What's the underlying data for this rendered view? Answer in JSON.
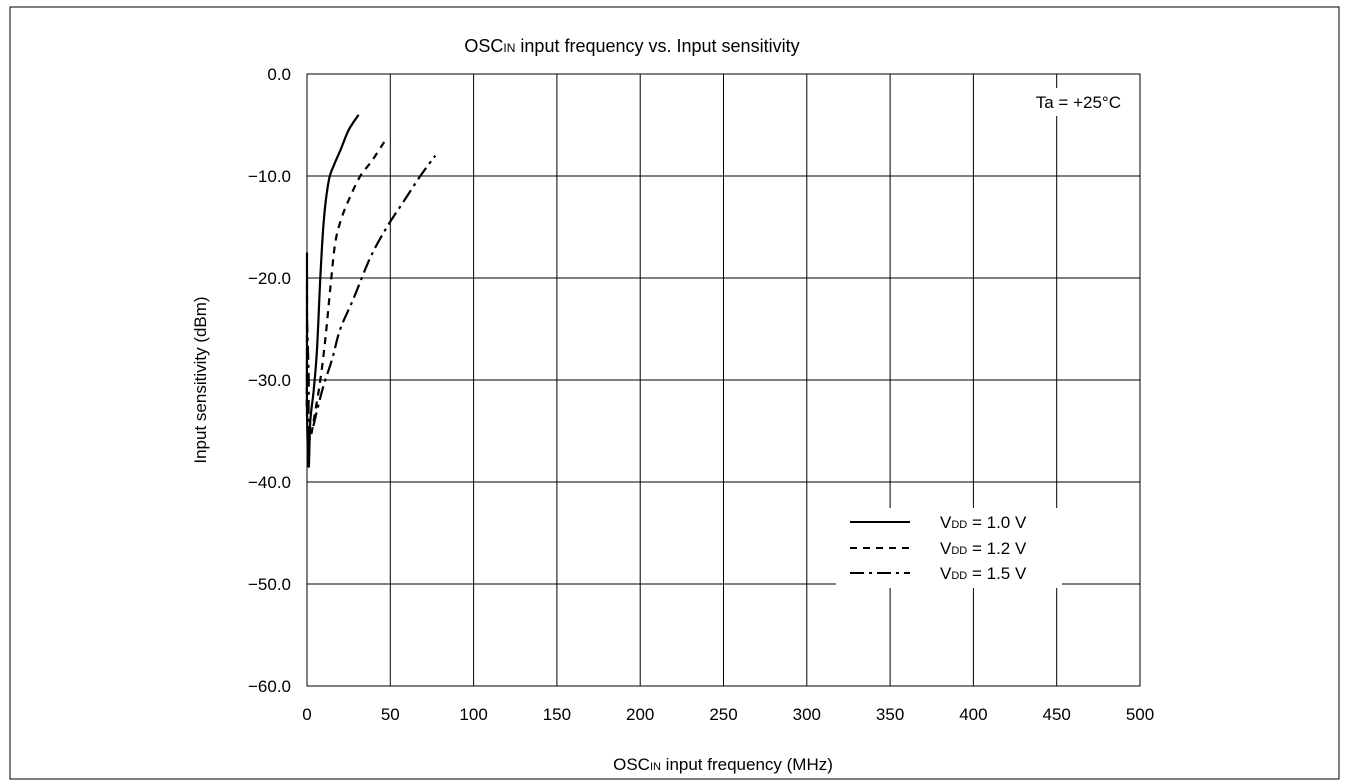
{
  "chart_data": {
    "type": "line",
    "title": {
      "main": "OSC",
      "sub": "IN",
      "rest": " input frequency vs. Input sensitivity"
    },
    "xlabel": {
      "main": "OSC",
      "sub": "IN",
      "rest": " input frequency (MHz)"
    },
    "ylabel": "Input sensitivity (dBm)",
    "annotation": "Ta = +25°C",
    "xlim": [
      0,
      500
    ],
    "ylim": [
      -60,
      0
    ],
    "x_ticks": [
      0,
      50,
      100,
      150,
      200,
      250,
      300,
      350,
      400,
      450,
      500
    ],
    "x_tick_labels": [
      "0",
      "50",
      "100",
      "150",
      "200",
      "250",
      "300",
      "350",
      "400",
      "450",
      "500"
    ],
    "y_ticks": [
      0,
      -10,
      -20,
      -30,
      -40,
      -50,
      -60
    ],
    "y_tick_labels": [
      "0.0",
      "−10.0",
      "−20.0",
      "−30.0",
      "−40.0",
      "−50.0",
      "−60.0"
    ],
    "grid": true,
    "legend_position": "lower-right",
    "series": [
      {
        "label": {
          "pre": "V",
          "sub": "DD",
          "post": " = 1.0 V"
        },
        "style": "solid",
        "x": [
          0,
          0,
          0,
          1,
          2,
          4,
          6,
          8,
          10,
          13,
          16,
          20,
          25,
          31
        ],
        "y": [
          -17.5,
          -25,
          -33,
          -38.5,
          -34,
          -31,
          -27,
          -20,
          -14.5,
          -10.5,
          -9,
          -7.5,
          -5.5,
          -4
        ]
      },
      {
        "label": {
          "pre": "V",
          "sub": "DD",
          "post": " = 1.2 V"
        },
        "style": "dashed",
        "x": [
          0,
          0,
          0,
          2,
          5,
          8,
          11,
          14,
          17,
          21,
          26,
          32,
          39,
          47
        ],
        "y": [
          -20.5,
          -29,
          -33.5,
          -35.5,
          -33,
          -30,
          -26,
          -21,
          -16.5,
          -14,
          -12,
          -10,
          -8.5,
          -6.5
        ]
      },
      {
        "label": {
          "pre": "V",
          "sub": "DD",
          "post": " = 1.5 V"
        },
        "style": "dashdot",
        "x": [
          0,
          1,
          1,
          3,
          6,
          10,
          15,
          20,
          28,
          38,
          48,
          58,
          68,
          77
        ],
        "y": [
          -24,
          -30,
          -35.5,
          -35,
          -33,
          -30.5,
          -28,
          -25,
          -22,
          -18,
          -15,
          -12.5,
          -10,
          -8
        ]
      }
    ]
  }
}
